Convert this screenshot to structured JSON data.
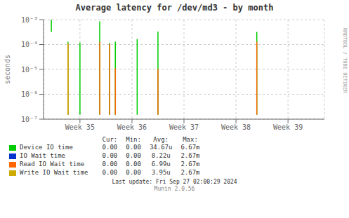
{
  "chart_data": {
    "type": "spikes",
    "title": "Average latency for /dev/md3 - by month",
    "ylabel": "seconds",
    "log": "y",
    "grid": true,
    "xlim": [
      34.3,
      39.7
    ],
    "xticks": [
      {
        "value": 35,
        "label": "Week 35"
      },
      {
        "value": 36,
        "label": "Week 36"
      },
      {
        "value": 37,
        "label": "Week 37"
      },
      {
        "value": 38,
        "label": "Week 38"
      },
      {
        "value": 39,
        "label": "Week 39"
      }
    ],
    "ylim": [
      1e-07,
      0.001
    ],
    "yticks": [
      {
        "value": 1e-07,
        "label": "10⁻⁷"
      },
      {
        "value": 1e-06,
        "label": "10⁻⁶"
      },
      {
        "value": 1e-05,
        "label": "10⁻⁵"
      },
      {
        "value": 0.0001,
        "label": "10⁻⁴"
      },
      {
        "value": 0.001,
        "label": "10⁻³"
      }
    ],
    "series": [
      {
        "name": "Device IO time",
        "color": "#00cc00",
        "x": [
          34.45,
          34.77,
          35.0,
          35.38,
          35.57,
          35.68,
          36.1,
          36.5,
          38.4
        ],
        "values": [
          [
            0.00032,
            0.001
          ],
          [
            1.5e-07,
            0.00013
          ],
          [
            1.5e-07,
            0.00012
          ],
          [
            1.5e-07,
            0.00085
          ],
          [
            1.5e-07,
            0.000115
          ],
          [
            1.5e-07,
            0.00013
          ],
          [
            1.5e-07,
            0.000165
          ],
          [
            1.5e-07,
            0.00033
          ],
          [
            1.5e-07,
            0.00032
          ]
        ],
        "stats": [
          "0.00",
          "0.00",
          "34.67u",
          "6.67m"
        ]
      },
      {
        "name": "IO Wait time",
        "color": "#0033cc",
        "x": [],
        "values": [],
        "stats": [
          "0.00",
          "0.00",
          "8.22u",
          "2.67m"
        ]
      },
      {
        "name": "Read IO Wait time",
        "color": "#ff6600",
        "x": [
          34.77,
          35.38,
          35.57,
          35.68,
          36.5,
          38.4
        ],
        "values": [
          [
            1.5e-07,
            0.00011
          ],
          [
            1.5e-07,
            0.00013
          ],
          [
            1.5e-07,
            0.000105
          ],
          [
            1.5e-07,
            1.1e-05
          ],
          [
            1.5e-07,
            1.05e-05
          ],
          [
            1.5e-07,
            0.00013
          ]
        ],
        "stats": [
          "0.00",
          "0.00",
          "6.99u",
          "2.67m"
        ]
      },
      {
        "name": "Write IO Wait time",
        "color": "#ccaa00",
        "x": [
          34.77
        ],
        "values": [
          [
            1.5e-07,
            0.00011
          ]
        ],
        "stats": [
          "0.00",
          "0.00",
          "3.95u",
          "2.67m"
        ]
      }
    ],
    "stats_headers": [
      "Cur:",
      "Min:",
      "Avg:",
      "Max:"
    ],
    "annotations": [
      "Last update: Fri Sep 27 02:00:29 2024",
      "Munin 2.0.56",
      "RRDTOOL / TOBI OETIKER"
    ]
  }
}
